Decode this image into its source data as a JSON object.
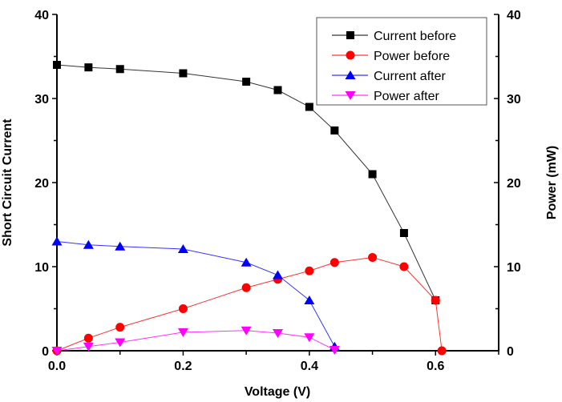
{
  "chart_data": {
    "type": "line",
    "title": "",
    "xlabel": "Voltage (V)",
    "ylabel": "Short Circuit Current",
    "y2label": "Power (mW)",
    "xlim": [
      0.0,
      0.7
    ],
    "ylim": [
      0,
      40
    ],
    "y2lim": [
      0,
      40
    ],
    "x_ticks": [
      "0.0",
      "0.2",
      "0.4",
      "0.6"
    ],
    "x_tick_values": [
      0.0,
      0.2,
      0.4,
      0.6
    ],
    "x_minor_ticks": [
      0.1,
      0.3,
      0.5,
      0.7
    ],
    "y_ticks": [
      "0",
      "10",
      "20",
      "30",
      "40"
    ],
    "y_tick_values": [
      0,
      10,
      20,
      30,
      40
    ],
    "y_minor_ticks": [
      5,
      15,
      25,
      35
    ],
    "y2_ticks": [
      "0",
      "10",
      "20",
      "30",
      "40"
    ],
    "grid": false,
    "legend_position": "top-right",
    "series": [
      {
        "name": "Current before",
        "axis": "left",
        "color": "#000000",
        "marker": "square",
        "x": [
          0.0,
          0.05,
          0.1,
          0.2,
          0.3,
          0.35,
          0.4,
          0.44,
          0.5,
          0.55,
          0.6
        ],
        "y": [
          34.0,
          33.7,
          33.5,
          33.0,
          32.0,
          31.0,
          29.0,
          26.2,
          21.0,
          14.0,
          6.0
        ]
      },
      {
        "name": "Power before",
        "axis": "right",
        "color": "#ff0000",
        "marker": "circle",
        "x": [
          0.0,
          0.05,
          0.1,
          0.2,
          0.3,
          0.35,
          0.4,
          0.44,
          0.5,
          0.55,
          0.6,
          0.61
        ],
        "y": [
          0.0,
          1.5,
          2.8,
          5.0,
          7.5,
          8.5,
          9.5,
          10.5,
          11.1,
          10.0,
          6.0,
          0.0
        ]
      },
      {
        "name": "Current after",
        "axis": "left",
        "color": "#0000ff",
        "marker": "triangle-up",
        "x": [
          0.0,
          0.05,
          0.1,
          0.2,
          0.3,
          0.35,
          0.4,
          0.44
        ],
        "y": [
          13.0,
          12.6,
          12.4,
          12.1,
          10.5,
          9.0,
          6.0,
          0.5
        ]
      },
      {
        "name": "Power after",
        "axis": "right",
        "color": "#ff00ff",
        "marker": "triangle-down",
        "x": [
          0.0,
          0.05,
          0.1,
          0.2,
          0.3,
          0.35,
          0.4,
          0.44
        ],
        "y": [
          0.0,
          0.5,
          1.0,
          2.2,
          2.4,
          2.1,
          1.6,
          0.1
        ]
      }
    ]
  }
}
